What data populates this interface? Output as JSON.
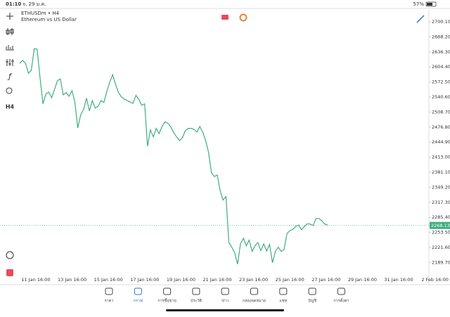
{
  "status_bar": {
    "time": "01:10",
    "date": "จ. 29 ม.ค.",
    "battery": "57%"
  },
  "chart": {
    "type": "line",
    "symbol": "ETHUSDm • H4",
    "description": "Ethereum vs US Dollar",
    "color": "#3fae7f",
    "values": [
      2612,
      2618,
      2612,
      2591,
      2597,
      2643,
      2642,
      2582,
      2526,
      2547,
      2551,
      2539,
      2557,
      2575,
      2579,
      2545,
      2550,
      2542,
      2554,
      2530,
      2475,
      2503,
      2514,
      2538,
      2511,
      2533,
      2517,
      2521,
      2533,
      2529,
      2553,
      2572,
      2588,
      2567,
      2550,
      2541,
      2536,
      2533,
      2530,
      2527,
      2544,
      2536,
      2523,
      2526,
      2436,
      2471,
      2456,
      2474,
      2463,
      2478,
      2488,
      2485,
      2477,
      2465,
      2456,
      2448,
      2454,
      2469,
      2474,
      2474,
      2472,
      2466,
      2478,
      2466,
      2448,
      2423,
      2380,
      2372,
      2375,
      2342,
      2322,
      2329,
      2232,
      2222,
      2210,
      2186,
      2229,
      2241,
      2225,
      2237,
      2213,
      2225,
      2232,
      2215,
      2229,
      2214,
      2228,
      2189,
      2213,
      2222,
      2213,
      2217,
      2251,
      2257,
      2260,
      2266,
      2269,
      2259,
      2266,
      2272,
      2271,
      2268,
      2283,
      2283,
      2278,
      2271,
      2269
    ],
    "ylim": [
      2164.9,
      2725.4
    ],
    "yticks": [
      {
        "value": 2700.1,
        "label": "2700.10"
      },
      {
        "value": 2668.2,
        "label": "2668.20"
      },
      {
        "value": 2636.3,
        "label": "2636.30"
      },
      {
        "value": 2604.4,
        "label": "2604.40"
      },
      {
        "value": 2572.5,
        "label": "2572.50"
      },
      {
        "value": 2540.6,
        "label": "2540.60"
      },
      {
        "value": 2508.7,
        "label": "2508.70"
      },
      {
        "value": 2476.8,
        "label": "2476.80"
      },
      {
        "value": 2444.9,
        "label": "2444.90"
      },
      {
        "value": 2413,
        "label": "2413.00"
      },
      {
        "value": 2381.1,
        "label": "2381.10"
      },
      {
        "value": 2349.2,
        "label": "2349.20"
      },
      {
        "value": 2317.3,
        "label": "2317.30"
      },
      {
        "value": 2285.4,
        "label": "2285.40"
      },
      {
        "value": 2253.5,
        "label": "2253.50"
      },
      {
        "value": 2221.6,
        "label": "2221.60"
      },
      {
        "value": 2189.7,
        "label": "2189.70"
      }
    ],
    "current_price": {
      "value": 2268.13,
      "label": "2268.13"
    },
    "x_labels": [
      "11 Jan 16:00",
      "13 Jan 16:00",
      "15 Jan 16:00",
      "17 Jan 16:00",
      "19 Jan 16:00",
      "21 Jan 16:00",
      "23 Jan 16:00",
      "25 Jan 16:00",
      "27 Jan 16:00",
      "29 Jan 16:00",
      "31 Jan 16:00",
      "2 Feb 16:00"
    ]
  },
  "toolbar": {
    "function": "ƒ",
    "timeframe": "H4"
  },
  "nav": {
    "active": 1,
    "tabs": [
      "ราคา",
      "กราฟ",
      "การซื้อขาย",
      "ประวัติ",
      "ข่าว",
      "กล่องจดหมาย",
      "แชท",
      "บัญชี",
      "การตั้งค่า"
    ]
  }
}
